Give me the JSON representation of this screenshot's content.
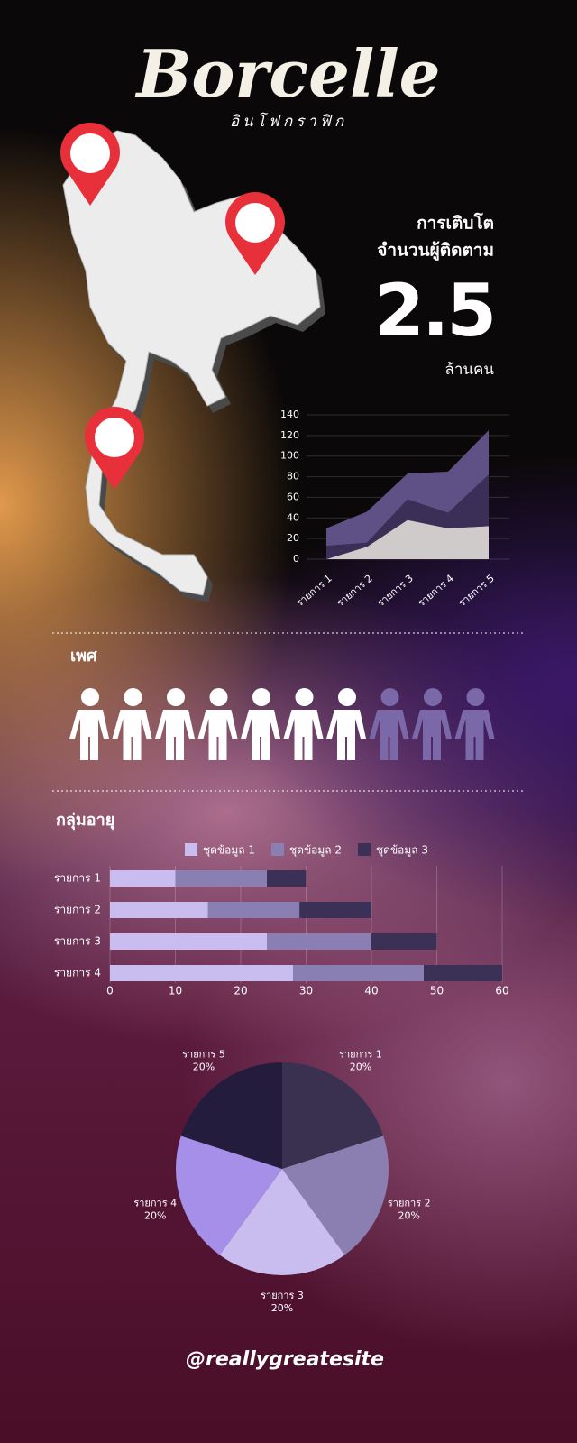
{
  "header": {
    "title": "Borcelle",
    "subtitle": "อินโฟกราฟิก"
  },
  "stat": {
    "line1": "การเติบโต",
    "line2": "จำนวนผู้ติดตาม",
    "value": 2.5,
    "unit": "ล้านคน"
  },
  "chart_data": [
    {
      "type": "area",
      "stacked": true,
      "categories": [
        "รายการ 1",
        "รายการ 2",
        "รายการ 3",
        "รายการ 4",
        "รายการ 5"
      ],
      "series": [
        {
          "color": "#cfcbcb",
          "values": [
            0,
            12,
            38,
            30,
            32
          ]
        },
        {
          "color": "#3b2f58",
          "values": [
            13,
            4,
            20,
            15,
            50
          ]
        },
        {
          "color": "#5f5085",
          "values": [
            17,
            30,
            25,
            40,
            43
          ]
        }
      ],
      "ylim": [
        0,
        140
      ],
      "yticks": [
        0,
        20,
        40,
        60,
        80,
        100,
        120,
        140
      ],
      "grid": true
    },
    {
      "type": "pictogram",
      "title": "เพศ",
      "values": [
        7,
        3
      ],
      "colors": [
        "#ffffff",
        "#7a68a8"
      ]
    },
    {
      "type": "bar",
      "orientation": "horizontal",
      "stacked": true,
      "title": "กลุ่มอายุ",
      "categories": [
        "รายการ 1",
        "รายการ 2",
        "รายการ 3",
        "รายการ 4"
      ],
      "series": [
        {
          "name": "ชุดข้อมูล 1",
          "color": "#c9bdf0",
          "values": [
            10,
            15,
            24,
            28
          ]
        },
        {
          "name": "ชุดข้อมูล 2",
          "color": "#8a7fb3",
          "values": [
            14,
            14,
            16,
            20
          ]
        },
        {
          "name": "ชุดข้อมูล 3",
          "color": "#3b3055",
          "values": [
            6,
            11,
            10,
            12
          ]
        }
      ],
      "xlim": [
        0,
        60
      ],
      "xticks": [
        0,
        10,
        20,
        30,
        40,
        50,
        60
      ],
      "grid": true,
      "legend": "top"
    },
    {
      "type": "pie",
      "categories": [
        "รายการ 1",
        "รายการ 2",
        "รายการ 3",
        "รายการ 4",
        "รายการ 5"
      ],
      "values": [
        20,
        20,
        20,
        20,
        20
      ],
      "value_labels": [
        "20%",
        "20%",
        "20%",
        "20%",
        "20%"
      ],
      "colors": [
        "#3a3050",
        "#8a7fb0",
        "#c9bdf0",
        "#a58fe8",
        "#241c3c"
      ]
    }
  ],
  "footer": {
    "handle": "@reallygreatesite"
  }
}
